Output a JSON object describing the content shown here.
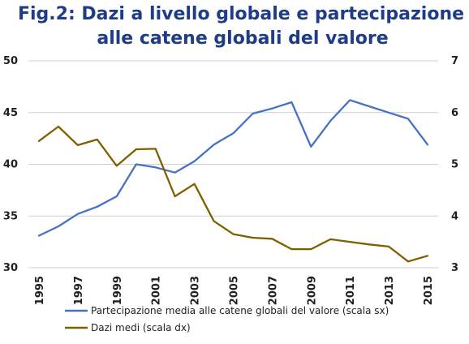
{
  "title": {
    "line1": "Fig.2:  Dazi a livello globale e partecipazione",
    "line2": "alle catene globali del valore"
  },
  "chart_data": {
    "type": "line",
    "x": [
      1995,
      1996,
      1997,
      1998,
      1999,
      2000,
      2001,
      2002,
      2003,
      2004,
      2005,
      2006,
      2007,
      2008,
      2009,
      2010,
      2011,
      2012,
      2013,
      2014,
      2015
    ],
    "x_tick_labels": [
      "1995",
      "1997",
      "1999",
      "2001",
      "2003",
      "2005",
      "2007",
      "2009",
      "2011",
      "2013",
      "2015"
    ],
    "y_left": {
      "min": 30,
      "max": 50,
      "ticks": [
        "30",
        "35",
        "40",
        "45",
        "50"
      ]
    },
    "y_right": {
      "min": 3,
      "max": 7,
      "ticks": [
        "3",
        "4",
        "5",
        "6",
        "7"
      ]
    },
    "grid": "horizontal",
    "legend_position": "bottom",
    "series": [
      {
        "name": "Partecipazione media alle catene globali del valore (scala sx)",
        "axis": "left",
        "color": "#4472c4",
        "values": [
          33.1,
          34.0,
          35.2,
          35.9,
          36.9,
          40.0,
          39.7,
          39.2,
          40.3,
          41.9,
          43.0,
          44.9,
          45.4,
          46.0,
          41.7,
          44.2,
          46.2,
          45.6,
          45.0,
          44.4,
          41.9
        ]
      },
      {
        "name": "Dazi medi  (scala dx)",
        "axis": "right",
        "color": "#7f6000",
        "values": [
          5.45,
          5.73,
          5.37,
          5.48,
          4.97,
          5.29,
          5.3,
          4.38,
          4.62,
          3.9,
          3.65,
          3.58,
          3.56,
          3.36,
          3.36,
          3.55,
          3.5,
          3.45,
          3.41,
          3.12,
          3.23
        ]
      }
    ]
  }
}
